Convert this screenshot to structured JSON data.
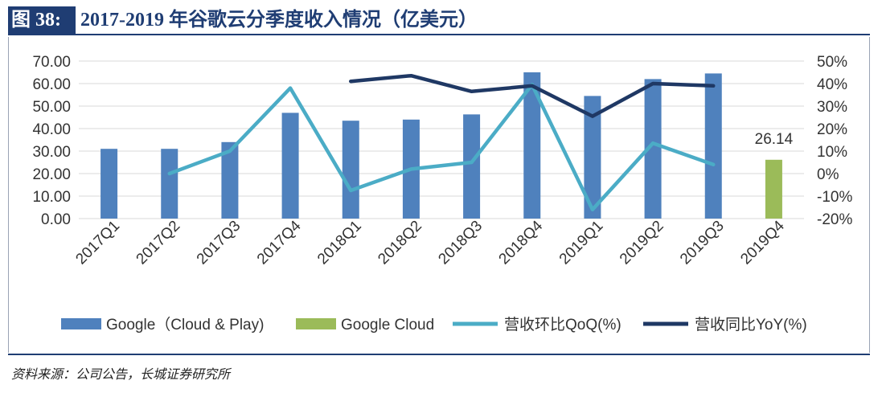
{
  "figure": {
    "label": "图 38:",
    "title": "2017-2019 年谷歌云分季度收入情况（亿美元）",
    "source": "资料来源：公司公告，长城证券研究所"
  },
  "colors": {
    "bar_google": "#4f81bd",
    "bar_cloud": "#9bbb59",
    "line_qoq": "#4bacc6",
    "line_yoy": "#1f3864",
    "grid": "#d9d9d9",
    "frame": "#1f3d73"
  },
  "chart_data": {
    "type": "bar",
    "categories": [
      "2017Q1",
      "2017Q2",
      "2017Q3",
      "2017Q4",
      "2018Q1",
      "2018Q2",
      "2018Q3",
      "2018Q4",
      "2019Q1",
      "2019Q2",
      "2019Q3",
      "2019Q4"
    ],
    "left_axis": {
      "ylim": [
        0,
        70
      ],
      "ticks": [
        "0.00",
        "10.00",
        "20.00",
        "30.00",
        "40.00",
        "50.00",
        "60.00",
        "70.00"
      ]
    },
    "right_axis": {
      "ylim": [
        -20,
        50
      ],
      "ticks": [
        "-20%",
        "-10%",
        "0%",
        "10%",
        "20%",
        "30%",
        "40%",
        "50%"
      ]
    },
    "grid": true,
    "legend_position": "bottom",
    "series": [
      {
        "name": "Google（Cloud & Play)",
        "kind": "bar",
        "axis": "left",
        "color": "#4f81bd",
        "values": [
          31.0,
          31.0,
          34.0,
          47.0,
          43.5,
          44.0,
          46.3,
          65.0,
          54.5,
          62.0,
          64.5,
          null
        ]
      },
      {
        "name": "Google Cloud",
        "kind": "bar",
        "axis": "left",
        "color": "#9bbb59",
        "values": [
          null,
          null,
          null,
          null,
          null,
          null,
          null,
          null,
          null,
          null,
          null,
          26.14
        ]
      },
      {
        "name": "营收环比QoQ(%)",
        "kind": "line",
        "axis": "right",
        "color": "#4bacc6",
        "values": [
          null,
          0,
          10,
          38,
          -7.5,
          2,
          5,
          39.5,
          -16,
          13.5,
          4,
          null
        ]
      },
      {
        "name": "营收同比YoY(%)",
        "kind": "line",
        "axis": "right",
        "color": "#1f3864",
        "values": [
          null,
          null,
          null,
          null,
          41,
          43.5,
          36.5,
          39,
          25.5,
          40,
          39,
          null
        ]
      }
    ],
    "data_labels": [
      {
        "series": 1,
        "index": 11,
        "text": "26.14"
      }
    ]
  }
}
